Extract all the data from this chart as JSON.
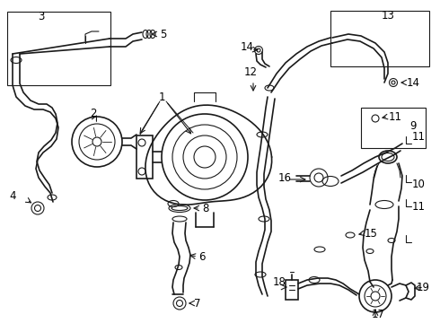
{
  "bg_color": "#ffffff",
  "line_color": "#1a1a1a",
  "label_color": "#000000",
  "lw_thin": 0.8,
  "lw_med": 1.2,
  "lw_thick": 1.5,
  "label_fs": 8.5
}
